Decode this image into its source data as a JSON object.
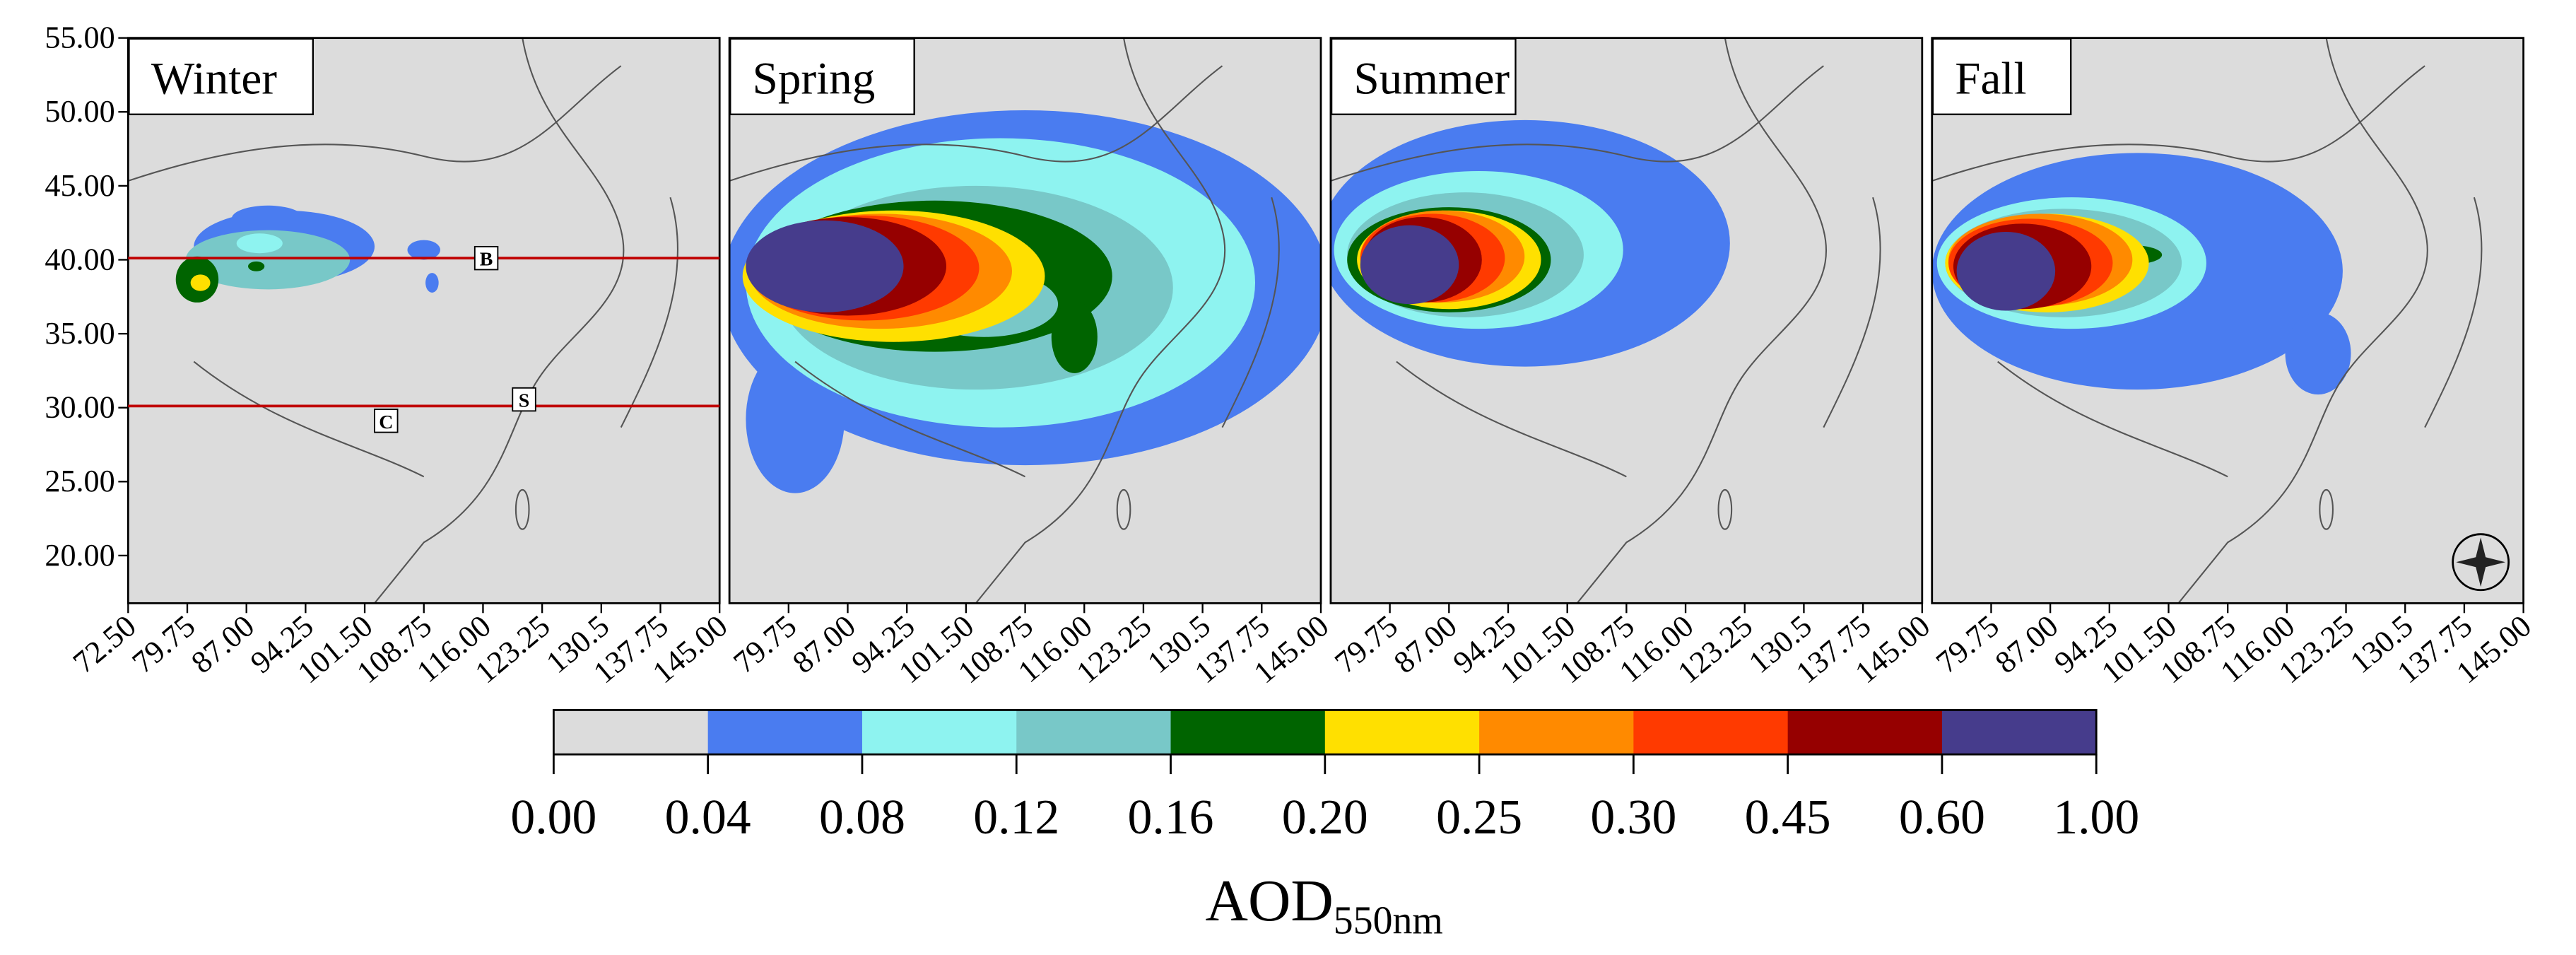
{
  "panels": [
    {
      "title": "Winter",
      "x_ticks": [
        "72.50",
        "79.75",
        "87.00",
        "94.25",
        "101.50",
        "108.75",
        "116.00",
        "123.25",
        "130.5",
        "137.75",
        "145.00"
      ]
    },
    {
      "title": "Spring",
      "x_ticks": [
        "79.75",
        "87.00",
        "94.25",
        "101.50",
        "108.75",
        "116.00",
        "123.25",
        "130.5",
        "137.75",
        "145.00"
      ]
    },
    {
      "title": "Summer",
      "x_ticks": [
        "79.75",
        "87.00",
        "94.25",
        "101.50",
        "108.75",
        "116.00",
        "123.25",
        "130.5",
        "137.75",
        "145.00"
      ]
    },
    {
      "title": "Fall",
      "x_ticks": [
        "79.75",
        "87.00",
        "94.25",
        "101.50",
        "108.75",
        "116.00",
        "123.25",
        "130.5",
        "137.75",
        "145.00"
      ]
    }
  ],
  "y_ticks": [
    "55.00",
    "50.00",
    "45.00",
    "40.00",
    "35.00",
    "30.00",
    "25.00",
    "20.00"
  ],
  "section_labels": [
    "B",
    "C",
    "S"
  ],
  "colorbar": {
    "colors": [
      "#dcdcdc",
      "#4a7cf0",
      "#8ef3f0",
      "#78c8c8",
      "#006400",
      "#ffe000",
      "#ff8a00",
      "#ff3a00",
      "#960000",
      "#463c8c"
    ],
    "ticks": [
      "0.00",
      "0.04",
      "0.08",
      "0.12",
      "0.16",
      "0.20",
      "0.25",
      "0.30",
      "0.45",
      "0.60",
      "1.00"
    ],
    "title": "AOD",
    "title_subscript": "550nm"
  }
}
